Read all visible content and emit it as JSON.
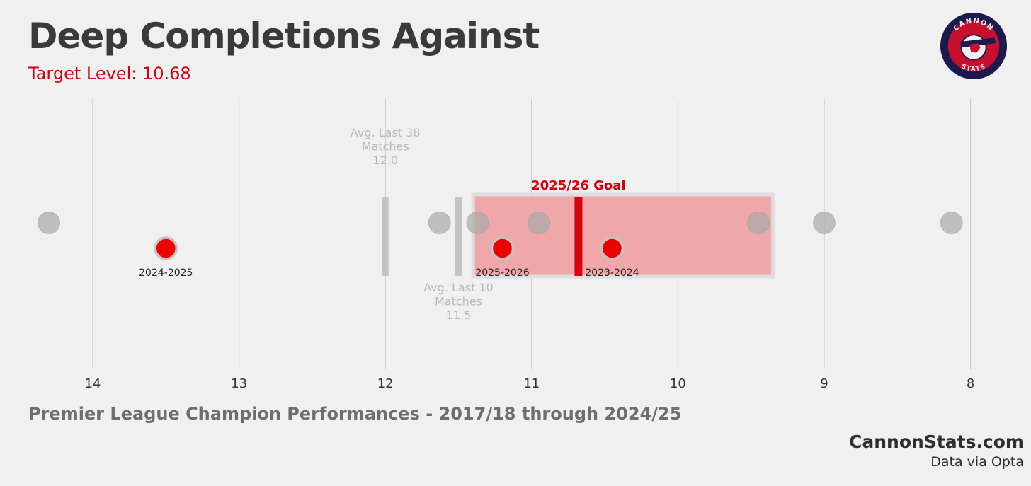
{
  "header": {
    "title": "Deep Completions Against",
    "subtitle": "Target Level: 10.68"
  },
  "logo": {
    "top_text": "CANNON",
    "bottom_text": "STATS",
    "colors": {
      "outer": "#1a1a4e",
      "inner": "#c8102e",
      "center": "#f0f0f0"
    }
  },
  "footer": {
    "caption": "Premier League Champion Performances - 2017/18 through 2024/25",
    "site": "CannonStats.com",
    "source": "Data via Opta"
  },
  "colors": {
    "background": "#f0f0f0",
    "grid": "#c8c8c8",
    "accent_red": "#d8000c",
    "point_red": "#ee0000",
    "point_grey": "#aaaaaa",
    "band_fill": "#f0a7aa",
    "band_border": "#dedede",
    "avg_bar": "#c4c4c4"
  },
  "chart_data": {
    "type": "scatter",
    "x_axis": {
      "reversed": true,
      "xlim": [
        14.5,
        7.9
      ],
      "ticks": [
        14,
        13,
        12,
        11,
        10,
        9,
        8
      ]
    },
    "grid": "vertical",
    "champion_points": [
      14.3,
      11.63,
      11.37,
      10.95,
      9.45,
      9.0,
      8.13
    ],
    "season_points": [
      {
        "label": "2024-2025",
        "value": 13.5
      },
      {
        "label": "2025-2026",
        "value": 11.2
      },
      {
        "label": "2023-2024",
        "value": 10.45
      }
    ],
    "goal": {
      "label": "2025/26 Goal",
      "value": 10.68
    },
    "goal_band": [
      11.4,
      9.35
    ],
    "averages": [
      {
        "label_lines": [
          "Avg. Last 38",
          "Matches",
          "12.0"
        ],
        "value": 12.0,
        "label_position": "above"
      },
      {
        "label_lines": [
          "Avg. Last 10",
          "Matches",
          "11.5"
        ],
        "value": 11.5,
        "label_position": "below"
      }
    ]
  }
}
